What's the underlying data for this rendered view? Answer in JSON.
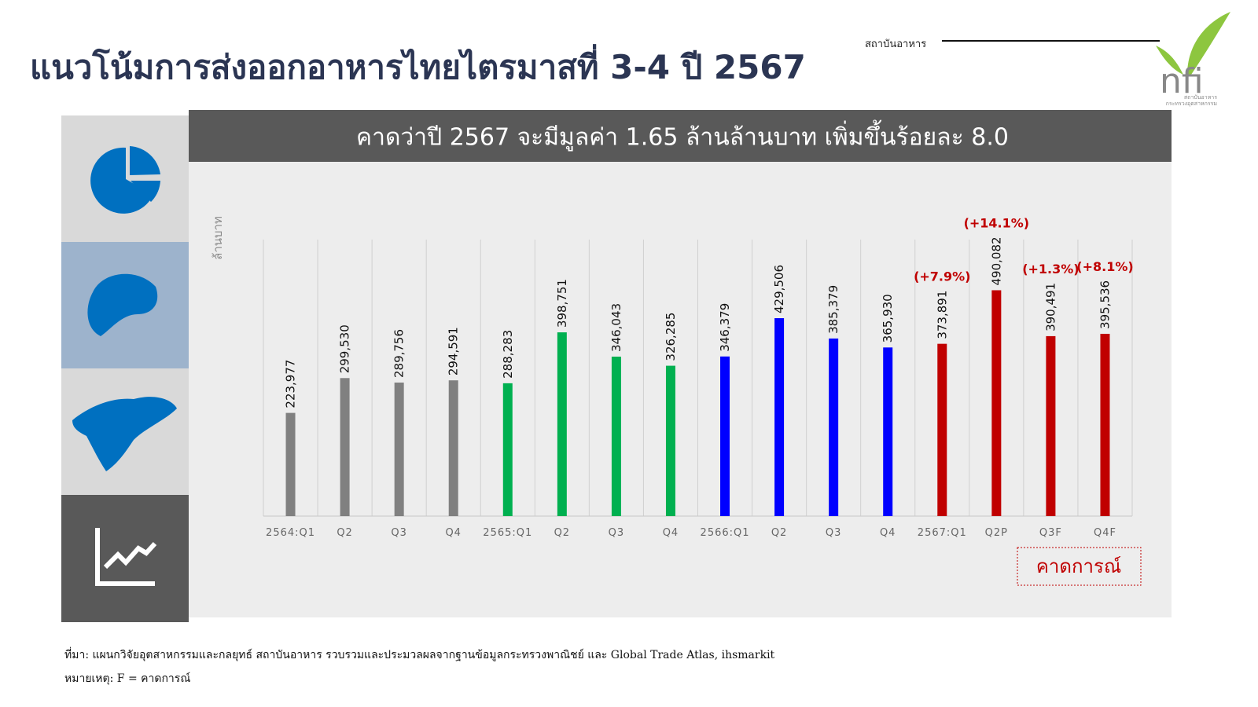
{
  "header": {
    "title": "แนวโน้มการส่งออกอาหารไทยไตรมาสที่ 3-4 ปี 2567",
    "org": "สถาบันอาหาร",
    "logo": "nfi",
    "logo_lines": [
      "สถาบันอาหาร",
      "กระทรวงอุตสาหกรรม"
    ]
  },
  "chart_data": {
    "type": "bar",
    "subtitle": "คาดว่าปี 2567 จะมีมูลค่า 1.65 ล้านล้านบาท เพิ่มขึ้นร้อยละ 8.0",
    "y_label": "ล้านบาท",
    "categories": [
      "2564:Q1",
      "Q2",
      "Q3",
      "Q4",
      "2565:Q1",
      "Q2",
      "Q3",
      "Q4",
      "2566:Q1",
      "Q2",
      "Q3",
      "Q4",
      "2567:Q1",
      "Q2P",
      "Q3F",
      "Q4F"
    ],
    "values": [
      223977,
      299530,
      289756,
      294591,
      288283,
      398751,
      346043,
      326285,
      346379,
      429506,
      385379,
      365930,
      373891,
      490082,
      390491,
      395536
    ],
    "value_labels": [
      "223,977",
      "299,530",
      "289,756",
      "294,591",
      "288,283",
      "398,751",
      "346,043",
      "326,285",
      "346,379",
      "429,506",
      "385,379",
      "365,930",
      "373,891",
      "490,082",
      "390,491",
      "395,536"
    ],
    "colors": [
      "#808080",
      "#808080",
      "#808080",
      "#808080",
      "#00b050",
      "#00b050",
      "#00b050",
      "#00b050",
      "#0000ff",
      "#0000ff",
      "#0000ff",
      "#0000ff",
      "#c00000",
      "#c00000",
      "#c00000",
      "#c00000"
    ],
    "growth_labels": [
      null,
      null,
      null,
      null,
      null,
      null,
      null,
      null,
      null,
      null,
      null,
      null,
      "(+7.9%)",
      "(+14.1%)",
      "(+1.3%)",
      "(+8.1%)"
    ],
    "forecast_label": "คาดการณ์",
    "ylim": [
      0,
      600000
    ]
  },
  "footnotes": [
    "ที่มา: แผนกวิจัยอุตสาหกรรมและกลยุทธ์  สถาบันอาหาร รวบรวมและประมวลผลจากฐานข้อมูลกระทรวงพาณิชย์ และ Global Trade Atlas, ihsmarkit",
    "หมายเหตุ: F = คาดการณ์"
  ]
}
